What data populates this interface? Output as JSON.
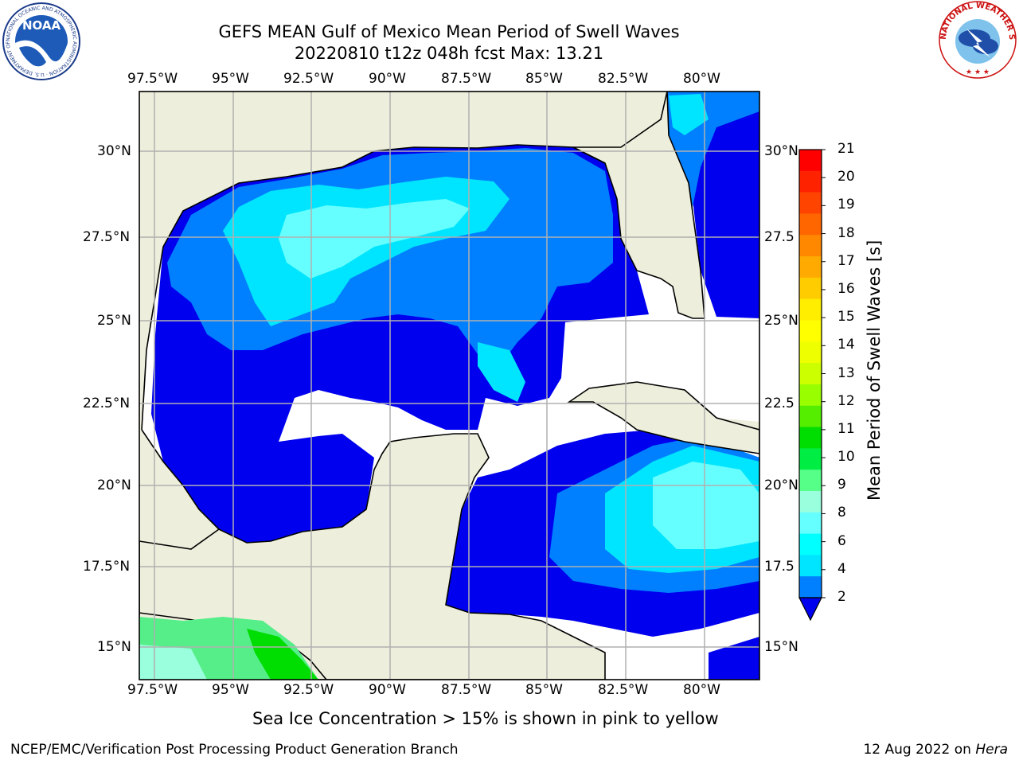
{
  "title_line1": "GEFS MEAN Gulf of Mexico Mean Period of Swell Waves",
  "title_line2": "20220810 t12z 048h fcst   Max: 13.21",
  "logos": {
    "noaa_text": "NOAA",
    "noaa_ring": "NATIONAL OCEANIC AND ATMOSPHERIC ADMINISTRATION · U.S. DEPARTMENT OF COMMERCE",
    "nws_ring": "NATIONAL WEATHER SERVICE"
  },
  "map": {
    "lon_labels": [
      "97.5°W",
      "95°W",
      "92.5°W",
      "90°W",
      "87.5°W",
      "85°W",
      "82.5°W",
      "80°W"
    ],
    "lat_labels_left": [
      "30°N",
      "27.5°N",
      "25°N",
      "22.5°N",
      "20°N",
      "17.5°N",
      "15°N"
    ],
    "lat_labels_right": [
      "30°N",
      "27.5",
      "25°N",
      "22.5",
      "20°N",
      "17.5",
      "15°N"
    ],
    "colors": {
      "land": "#eeeedd",
      "ocean_nodata": "#ffffff",
      "grid": "#b0b0b0"
    }
  },
  "colorbar": {
    "title": "Mean Period of Swell Waves [s]",
    "ticks": [
      "21",
      "20",
      "19",
      "18",
      "17",
      "16",
      "15",
      "14",
      "13",
      "12",
      "11",
      "10",
      "9",
      "8",
      "6",
      "4",
      "2"
    ],
    "colors": [
      "#ff0000",
      "#ff2200",
      "#ff4400",
      "#ff6600",
      "#ff8800",
      "#ffaa00",
      "#ffcc00",
      "#ffee00",
      "#ffff00",
      "#eeff00",
      "#ccff00",
      "#99ff00",
      "#55ee00",
      "#00dd00",
      "#00ee44",
      "#55ff88",
      "#99ffdd",
      "#66ffff",
      "#00ffff",
      "#00e5ff",
      "#0080ff"
    ],
    "under_color": "#0000ee"
  },
  "note": "Sea Ice Concentration > 15% is shown in pink to yellow",
  "footer_left": "NCEP/EMC/Verification Post Processing Product Generation Branch",
  "footer_right_date": "12 Aug 2022 on ",
  "footer_right_host": "Hera"
}
